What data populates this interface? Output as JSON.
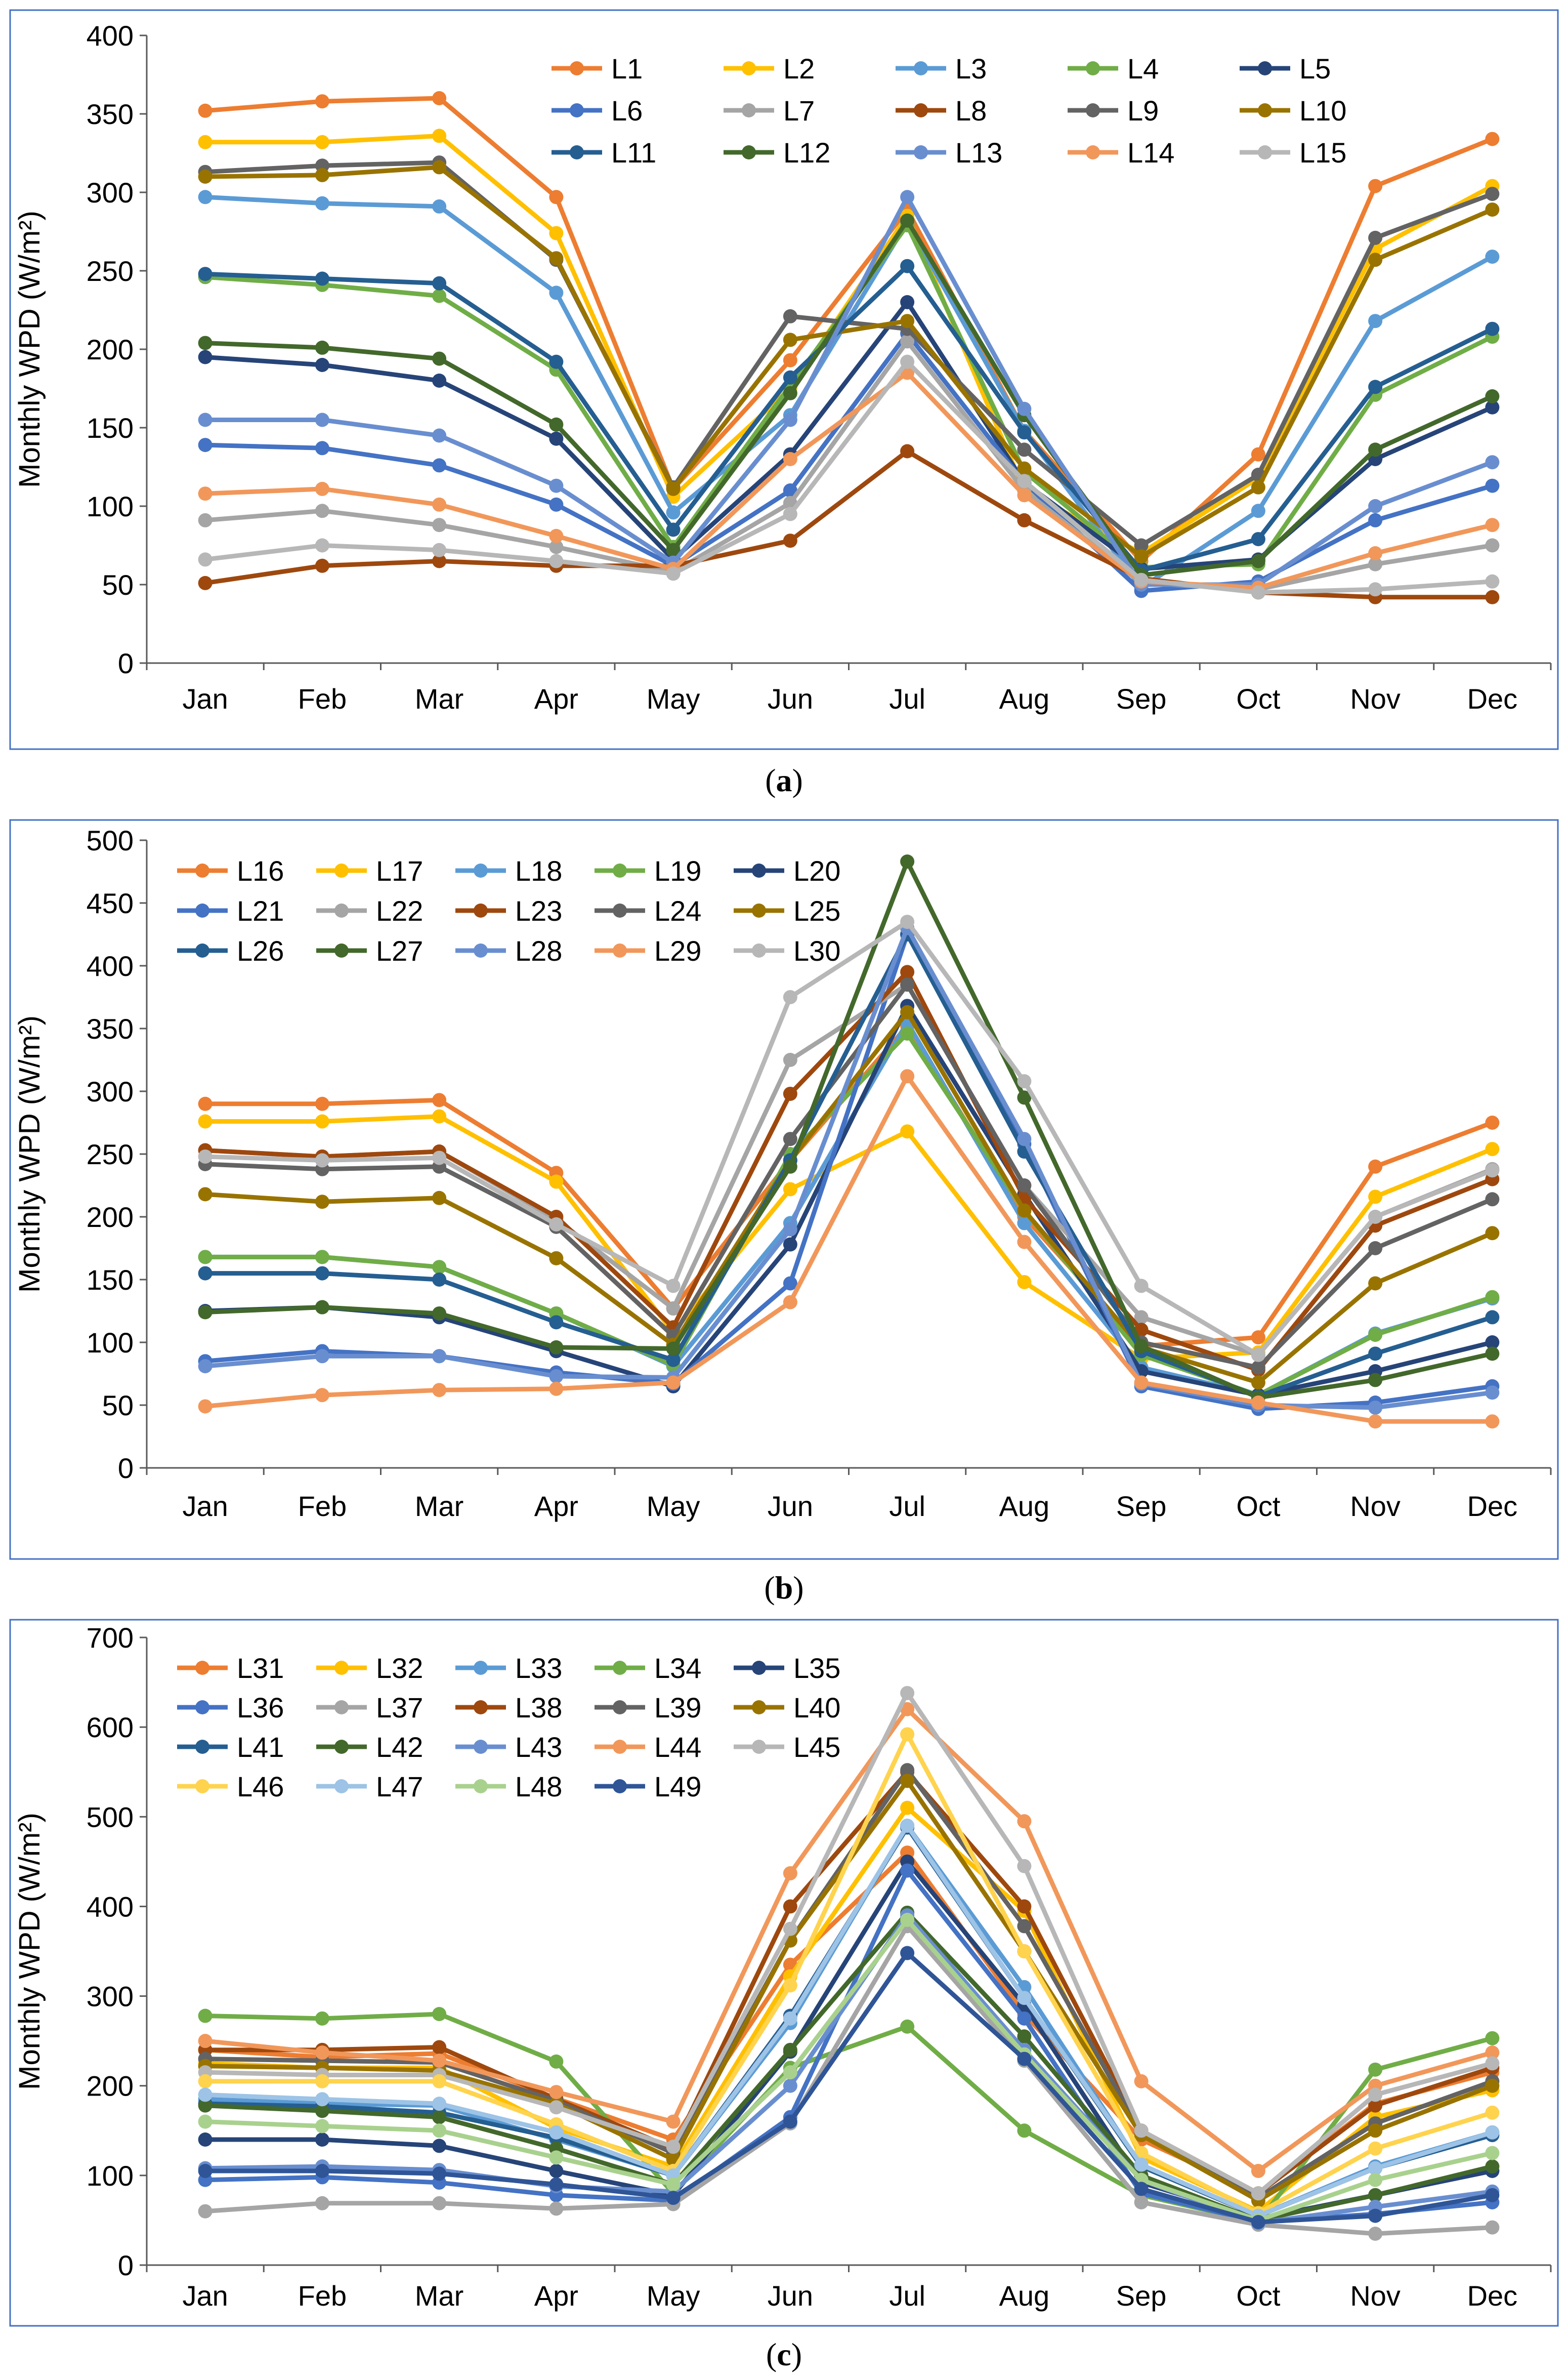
{
  "chart_data": [
    {
      "type": "line",
      "panel_label": "a",
      "ylabel": "Monthly WPD (W/m²)",
      "xlabel": "",
      "ylim": [
        0,
        400
      ],
      "yticks": [
        0,
        50,
        100,
        150,
        200,
        250,
        300,
        350,
        400
      ],
      "categories": [
        "Jan",
        "Feb",
        "Mar",
        "Apr",
        "May",
        "Jun",
        "Jul",
        "Aug",
        "Sep",
        "Oct",
        "Nov",
        "Dec"
      ],
      "legend_position": "top-right",
      "legend_columns": 5,
      "series": [
        {
          "name": "L1",
          "color": "#ED7D31",
          "values": [
            352,
            358,
            360,
            297,
            111,
            193,
            289,
            148,
            65,
            133,
            304,
            334
          ]
        },
        {
          "name": "L2",
          "color": "#FFC000",
          "values": [
            332,
            332,
            336,
            274,
            106,
            175,
            285,
            110,
            70,
            118,
            264,
            304
          ]
        },
        {
          "name": "L3",
          "color": "#5B9BD5",
          "values": [
            297,
            293,
            291,
            236,
            96,
            158,
            281,
            148,
            48,
            97,
            218,
            259
          ]
        },
        {
          "name": "L4",
          "color": "#70AD47",
          "values": [
            246,
            241,
            234,
            187,
            74,
            177,
            279,
            122,
            61,
            63,
            171,
            208
          ]
        },
        {
          "name": "L5",
          "color": "#264478",
          "values": [
            195,
            190,
            180,
            143,
            66,
            133,
            230,
            115,
            60,
            66,
            130,
            163
          ]
        },
        {
          "name": "L6",
          "color": "#4472C4",
          "values": [
            139,
            137,
            126,
            101,
            62,
            110,
            210,
            115,
            46,
            52,
            91,
            113
          ]
        },
        {
          "name": "L7",
          "color": "#A5A5A5",
          "values": [
            91,
            97,
            88,
            74,
            58,
            102,
            205,
            110,
            51,
            47,
            63,
            75
          ]
        },
        {
          "name": "L8",
          "color": "#9E480E",
          "values": [
            51,
            62,
            65,
            62,
            62,
            78,
            135,
            91,
            54,
            45,
            42,
            42
          ]
        },
        {
          "name": "L9",
          "color": "#636363",
          "values": [
            313,
            317,
            319,
            257,
            112,
            221,
            213,
            136,
            75,
            120,
            271,
            299
          ]
        },
        {
          "name": "L10",
          "color": "#997300",
          "values": [
            310,
            311,
            316,
            258,
            111,
            206,
            218,
            124,
            68,
            112,
            257,
            289
          ]
        },
        {
          "name": "L11",
          "color": "#255E91",
          "values": [
            248,
            245,
            242,
            192,
            85,
            182,
            253,
            147,
            59,
            79,
            176,
            213
          ]
        },
        {
          "name": "L12",
          "color": "#43682B",
          "values": [
            204,
            201,
            194,
            152,
            72,
            172,
            282,
            158,
            56,
            65,
            136,
            170
          ]
        },
        {
          "name": "L13",
          "color": "#698ED0",
          "values": [
            155,
            155,
            145,
            113,
            64,
            155,
            297,
            162,
            50,
            50,
            100,
            128
          ]
        },
        {
          "name": "L14",
          "color": "#F1975A",
          "values": [
            108,
            111,
            101,
            81,
            60,
            130,
            185,
            107,
            52,
            48,
            70,
            88
          ]
        },
        {
          "name": "L15",
          "color": "#B7B7B7",
          "values": [
            66,
            75,
            72,
            65,
            57,
            95,
            192,
            116,
            53,
            45,
            47,
            52
          ]
        }
      ]
    },
    {
      "type": "line",
      "panel_label": "b",
      "ylabel": "Monthly WPD (W/m²)",
      "xlabel": "",
      "ylim": [
        0,
        500
      ],
      "yticks": [
        0,
        50,
        100,
        150,
        200,
        250,
        300,
        350,
        400,
        450,
        500
      ],
      "categories": [
        "Jan",
        "Feb",
        "Mar",
        "Apr",
        "May",
        "Jun",
        "Jul",
        "Aug",
        "Sep",
        "Oct",
        "Nov",
        "Dec"
      ],
      "legend_position": "top-left",
      "legend_columns": 5,
      "series": [
        {
          "name": "L16",
          "color": "#ED7D31",
          "values": [
            290,
            290,
            293,
            235,
            127,
            245,
            352,
            200,
            97,
            104,
            240,
            275
          ]
        },
        {
          "name": "L17",
          "color": "#FFC000",
          "values": [
            276,
            276,
            280,
            228,
            108,
            222,
            268,
            148,
            87,
            92,
            216,
            254
          ]
        },
        {
          "name": "L18",
          "color": "#5B9BD5",
          "values": [
            168,
            168,
            160,
            123,
            81,
            195,
            355,
            195,
            80,
            58,
            107,
            135
          ]
        },
        {
          "name": "L19",
          "color": "#70AD47",
          "values": [
            168,
            168,
            160,
            123,
            82,
            250,
            346,
            205,
            90,
            58,
            106,
            136
          ]
        },
        {
          "name": "L20",
          "color": "#264478",
          "values": [
            125,
            128,
            120,
            93,
            65,
            178,
            368,
            218,
            77,
            58,
            77,
            100
          ]
        },
        {
          "name": "L21",
          "color": "#4472C4",
          "values": [
            85,
            93,
            89,
            76,
            67,
            147,
            425,
            258,
            65,
            47,
            52,
            65
          ]
        },
        {
          "name": "L22",
          "color": "#A5A5A5",
          "values": [
            253,
            248,
            252,
            198,
            127,
            325,
            385,
            225,
            120,
            90,
            200,
            238
          ]
        },
        {
          "name": "L23",
          "color": "#9E480E",
          "values": [
            253,
            248,
            252,
            200,
            112,
            298,
            395,
            215,
            110,
            78,
            193,
            230
          ]
        },
        {
          "name": "L24",
          "color": "#636363",
          "values": [
            242,
            238,
            240,
            192,
            105,
            262,
            385,
            225,
            100,
            80,
            175,
            214
          ]
        },
        {
          "name": "L25",
          "color": "#997300",
          "values": [
            218,
            212,
            215,
            167,
            98,
            245,
            363,
            205,
            96,
            68,
            147,
            187
          ]
        },
        {
          "name": "L26",
          "color": "#255E91",
          "values": [
            155,
            155,
            150,
            116,
            86,
            245,
            425,
            252,
            93,
            57,
            91,
            120
          ]
        },
        {
          "name": "L27",
          "color": "#43682B",
          "values": [
            124,
            128,
            123,
            96,
            95,
            240,
            483,
            295,
            97,
            56,
            70,
            91
          ]
        },
        {
          "name": "L28",
          "color": "#698ED0",
          "values": [
            81,
            89,
            89,
            73,
            72,
            190,
            430,
            262,
            67,
            50,
            48,
            60
          ]
        },
        {
          "name": "L29",
          "color": "#F1975A",
          "values": [
            49,
            58,
            62,
            63,
            68,
            132,
            312,
            180,
            68,
            52,
            37,
            37
          ]
        },
        {
          "name": "L30",
          "color": "#B7B7B7",
          "values": [
            248,
            245,
            247,
            194,
            145,
            375,
            435,
            308,
            145,
            90,
            200,
            237
          ]
        }
      ]
    },
    {
      "type": "line",
      "panel_label": "c",
      "ylabel": "Monthly WPD (W/m²)",
      "xlabel": "",
      "ylim": [
        0,
        700
      ],
      "yticks": [
        0,
        100,
        200,
        300,
        400,
        500,
        600,
        700
      ],
      "categories": [
        "Jan",
        "Feb",
        "Mar",
        "Apr",
        "May",
        "Jun",
        "Jul",
        "Aug",
        "Sep",
        "Oct",
        "Nov",
        "Dec"
      ],
      "legend_position": "top-left",
      "legend_columns": 5,
      "series": [
        {
          "name": "L31",
          "color": "#ED7D31",
          "values": [
            240,
            232,
            236,
            186,
            140,
            335,
            460,
            280,
            140,
            80,
            180,
            215
          ]
        },
        {
          "name": "L32",
          "color": "#FFC000",
          "values": [
            225,
            220,
            220,
            153,
            110,
            322,
            510,
            395,
            120,
            60,
            165,
            195
          ]
        },
        {
          "name": "L33",
          "color": "#5B9BD5",
          "values": [
            185,
            180,
            178,
            140,
            100,
            270,
            490,
            310,
            110,
            55,
            110,
            148
          ]
        },
        {
          "name": "L34",
          "color": "#70AD47",
          "values": [
            278,
            275,
            280,
            227,
            80,
            220,
            266,
            150,
            78,
            48,
            218,
            253
          ]
        },
        {
          "name": "L35",
          "color": "#264478",
          "values": [
            140,
            140,
            133,
            105,
            78,
            238,
            450,
            290,
            92,
            52,
            78,
            105
          ]
        },
        {
          "name": "L36",
          "color": "#4472C4",
          "values": [
            95,
            98,
            92,
            78,
            72,
            165,
            440,
            275,
            80,
            48,
            57,
            70
          ]
        },
        {
          "name": "L37",
          "color": "#A5A5A5",
          "values": [
            60,
            69,
            69,
            63,
            68,
            158,
            378,
            228,
            70,
            45,
            35,
            42
          ]
        },
        {
          "name": "L38",
          "color": "#9E480E",
          "values": [
            240,
            240,
            243,
            185,
            130,
            400,
            550,
            400,
            150,
            80,
            178,
            220
          ]
        },
        {
          "name": "L39",
          "color": "#636363",
          "values": [
            230,
            228,
            226,
            183,
            125,
            362,
            552,
            378,
            148,
            75,
            158,
            205
          ]
        },
        {
          "name": "L40",
          "color": "#997300",
          "values": [
            222,
            220,
            217,
            180,
            118,
            362,
            540,
            350,
            145,
            72,
            150,
            200
          ]
        },
        {
          "name": "L41",
          "color": "#255E91",
          "values": [
            180,
            177,
            170,
            142,
            100,
            278,
            488,
            298,
            110,
            55,
            108,
            145
          ]
        },
        {
          "name": "L42",
          "color": "#43682B",
          "values": [
            178,
            172,
            165,
            130,
            90,
            240,
            393,
            255,
            100,
            50,
            78,
            110
          ]
        },
        {
          "name": "L43",
          "color": "#698ED0",
          "values": [
            108,
            110,
            106,
            88,
            82,
            200,
            390,
            240,
            95,
            47,
            65,
            82
          ]
        },
        {
          "name": "L44",
          "color": "#F1975A",
          "values": [
            250,
            237,
            228,
            193,
            160,
            437,
            620,
            495,
            205,
            105,
            200,
            237
          ]
        },
        {
          "name": "L45",
          "color": "#B7B7B7",
          "values": [
            215,
            212,
            212,
            176,
            132,
            375,
            638,
            445,
            150,
            80,
            190,
            225
          ]
        },
        {
          "name": "L46",
          "color": "#FFD34D",
          "values": [
            205,
            205,
            205,
            157,
            105,
            312,
            592,
            350,
            125,
            58,
            130,
            170
          ]
        },
        {
          "name": "L47",
          "color": "#9DC3E6",
          "values": [
            190,
            185,
            180,
            148,
            100,
            275,
            490,
            298,
            112,
            55,
            108,
            148
          ]
        },
        {
          "name": "L48",
          "color": "#A9D18E",
          "values": [
            160,
            155,
            150,
            120,
            90,
            215,
            385,
            235,
            95,
            50,
            95,
            125
          ]
        },
        {
          "name": "L49",
          "color": "#2F5597",
          "values": [
            105,
            105,
            102,
            90,
            75,
            160,
            348,
            230,
            85,
            48,
            55,
            78
          ]
        }
      ]
    }
  ]
}
